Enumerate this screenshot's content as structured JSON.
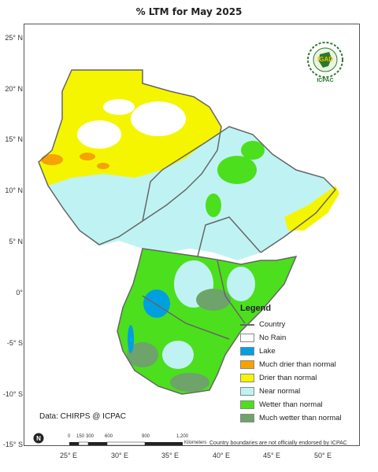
{
  "title": "% LTM for May 2025",
  "lat_labels": [
    "25° N",
    "20° N",
    "15° N",
    "10° N",
    "5° N",
    "0°",
    "-5° S",
    "-10° S",
    "-15° S"
  ],
  "lon_labels": [
    "25° E",
    "30° E",
    "35° E",
    "40° E",
    "45° E",
    "50° E"
  ],
  "legend": {
    "title": "Legend",
    "country_label": "Country",
    "items": [
      {
        "label": "No Rain",
        "color": "#ffffff"
      },
      {
        "label": "Lake",
        "color": "#00a0e0"
      },
      {
        "label": "Much drier than normal",
        "color": "#f5a300"
      },
      {
        "label": "Drier than normal",
        "color": "#f5f500"
      },
      {
        "label": "Near normal",
        "color": "#bff3f3"
      },
      {
        "label": "Wetter than normal",
        "color": "#4cdf1d"
      },
      {
        "label": "Much wetter than normal",
        "color": "#6ea36a"
      }
    ]
  },
  "credit": "Data: CHIRPS @ ICPAC",
  "endorsement": "Country boundaries are not officially endorsed by ICPAC",
  "scale": {
    "ticks": [
      "0",
      "150",
      "300",
      "600",
      "900",
      "1,200"
    ],
    "unit": "Kilometers"
  },
  "logo": {
    "badge": "IGAD",
    "org": "ICPAC"
  },
  "north_arrow_label": "N"
}
